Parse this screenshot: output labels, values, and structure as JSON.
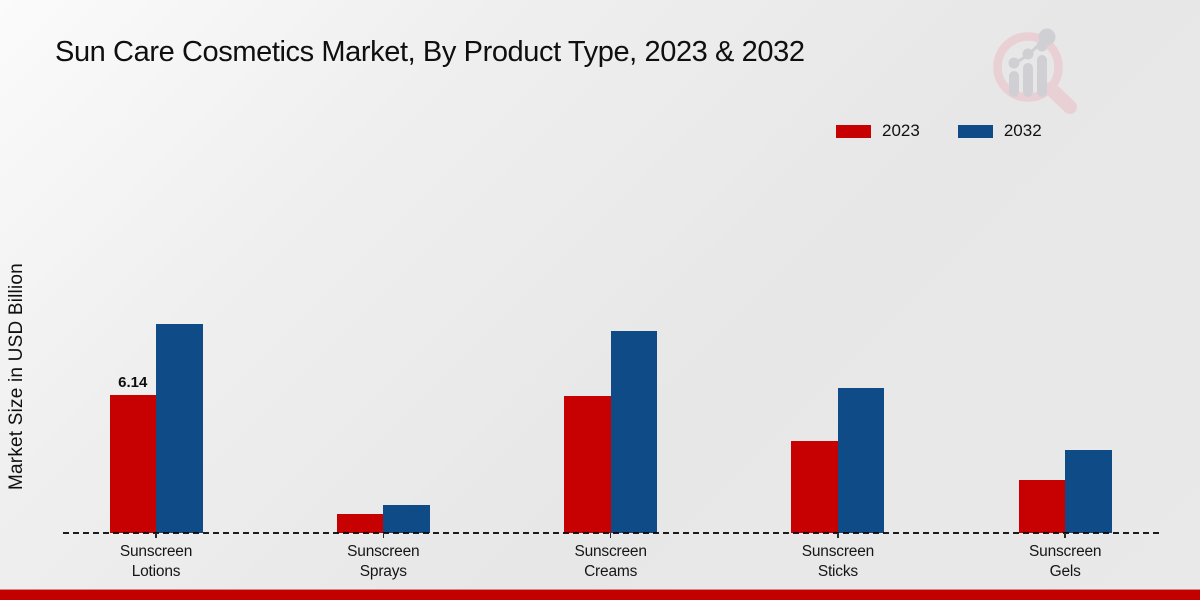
{
  "header": {
    "title": "Sun Care Cosmetics Market, By Product Type, 2023 & 2032"
  },
  "branding": {
    "logo_icon": "magnifier-over-bar-chart-watermark",
    "footer_bar_color": "#c20000"
  },
  "chart_data": {
    "type": "bar",
    "title": "Sun Care Cosmetics Market, By Product Type, 2023 & 2032",
    "xlabel": "",
    "ylabel": "Market Size in USD Billion",
    "categories": [
      "Sunscreen Lotions",
      "Sunscreen Sprays",
      "Sunscreen Creams",
      "Sunscreen Sticks",
      "Sunscreen Gels"
    ],
    "series": [
      {
        "name": "2023",
        "color": "#c70101",
        "values": [
          6.14,
          0.85,
          6.08,
          4.1,
          2.37
        ]
      },
      {
        "name": "2032",
        "color": "#0f4c87",
        "values": [
          9.31,
          1.25,
          9.0,
          6.45,
          3.7
        ]
      }
    ],
    "ylim": [
      0,
      10
    ],
    "grid": false,
    "y_axis_visible": false,
    "baseline_style": "dashed",
    "legend_position": "top-right",
    "annotations": [
      {
        "category_index": 0,
        "series_index": 0,
        "text": "6.14"
      }
    ]
  }
}
